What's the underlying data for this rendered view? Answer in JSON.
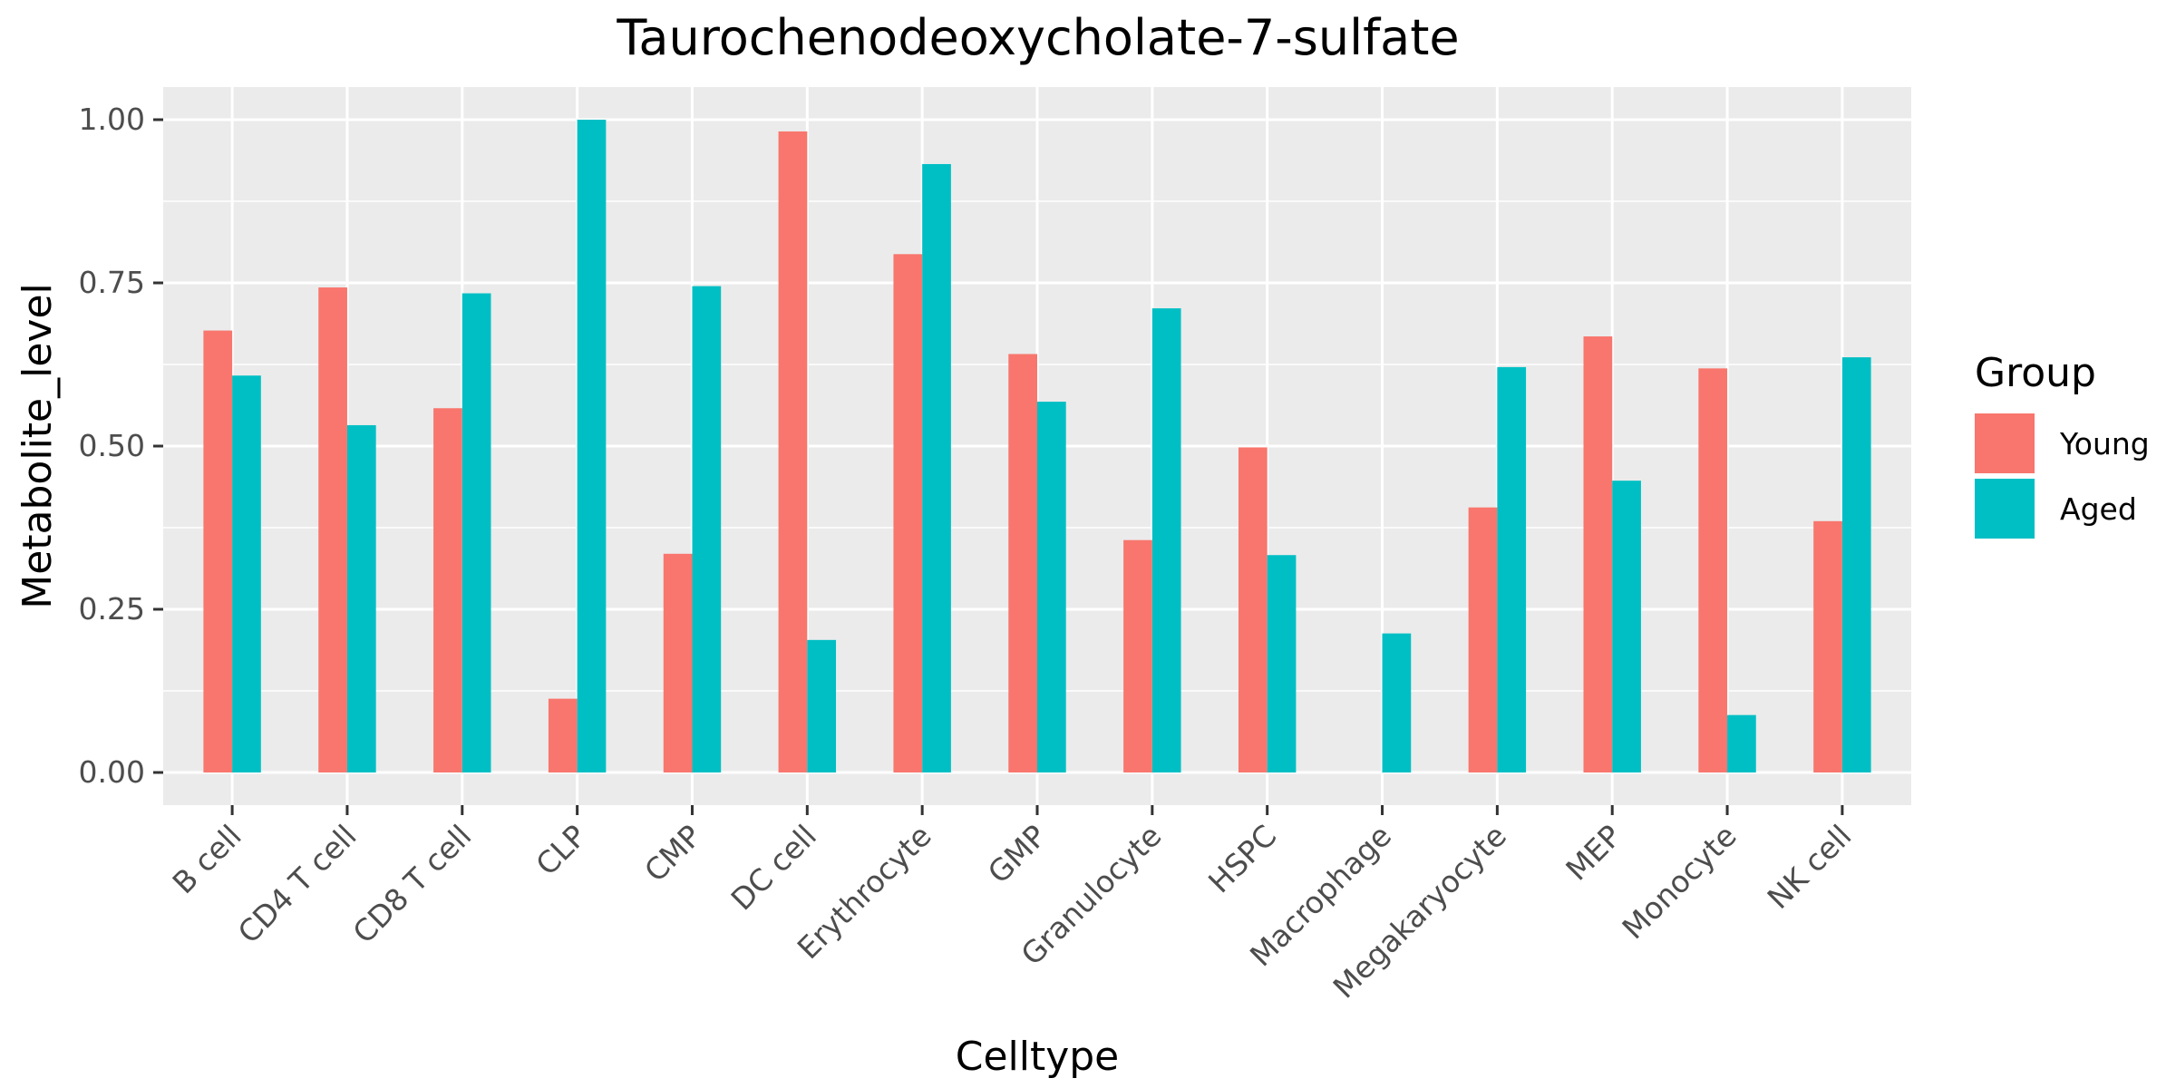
{
  "chart_data": {
    "type": "bar",
    "title": "Taurochenodeoxycholate-7-sulfate",
    "xlabel": "Celltype",
    "ylabel": "Metabolite_level",
    "ylim": [
      -0.05,
      1.05
    ],
    "yticks": [
      0,
      0.25,
      0.5,
      0.75,
      1
    ],
    "ytick_labels": [
      "0.00",
      "0.25",
      "0.50",
      "0.75",
      "1.00"
    ],
    "grid": true,
    "legend": {
      "title": "Group",
      "position": "right"
    },
    "categories": [
      "B cell",
      "CD4 T cell",
      "CD8 T cell",
      "CLP",
      "CMP",
      "DC cell",
      "Erythrocyte",
      "GMP",
      "Granulocyte",
      "HSPC",
      "Macrophage",
      "Megakaryocyte",
      "MEP",
      "Monocyte",
      "NK cell"
    ],
    "series": [
      {
        "name": "Young",
        "color": "#F8766D",
        "values": [
          0.677,
          0.743,
          0.558,
          0.113,
          0.335,
          0.982,
          0.794,
          0.641,
          0.356,
          0.498,
          0.0,
          0.406,
          0.668,
          0.619,
          0.385
        ]
      },
      {
        "name": "Aged",
        "color": "#00BFC4",
        "values": [
          0.608,
          0.532,
          0.734,
          1.0,
          0.745,
          0.203,
          0.932,
          0.568,
          0.711,
          0.333,
          0.213,
          0.621,
          0.447,
          0.088,
          0.636
        ]
      }
    ]
  }
}
